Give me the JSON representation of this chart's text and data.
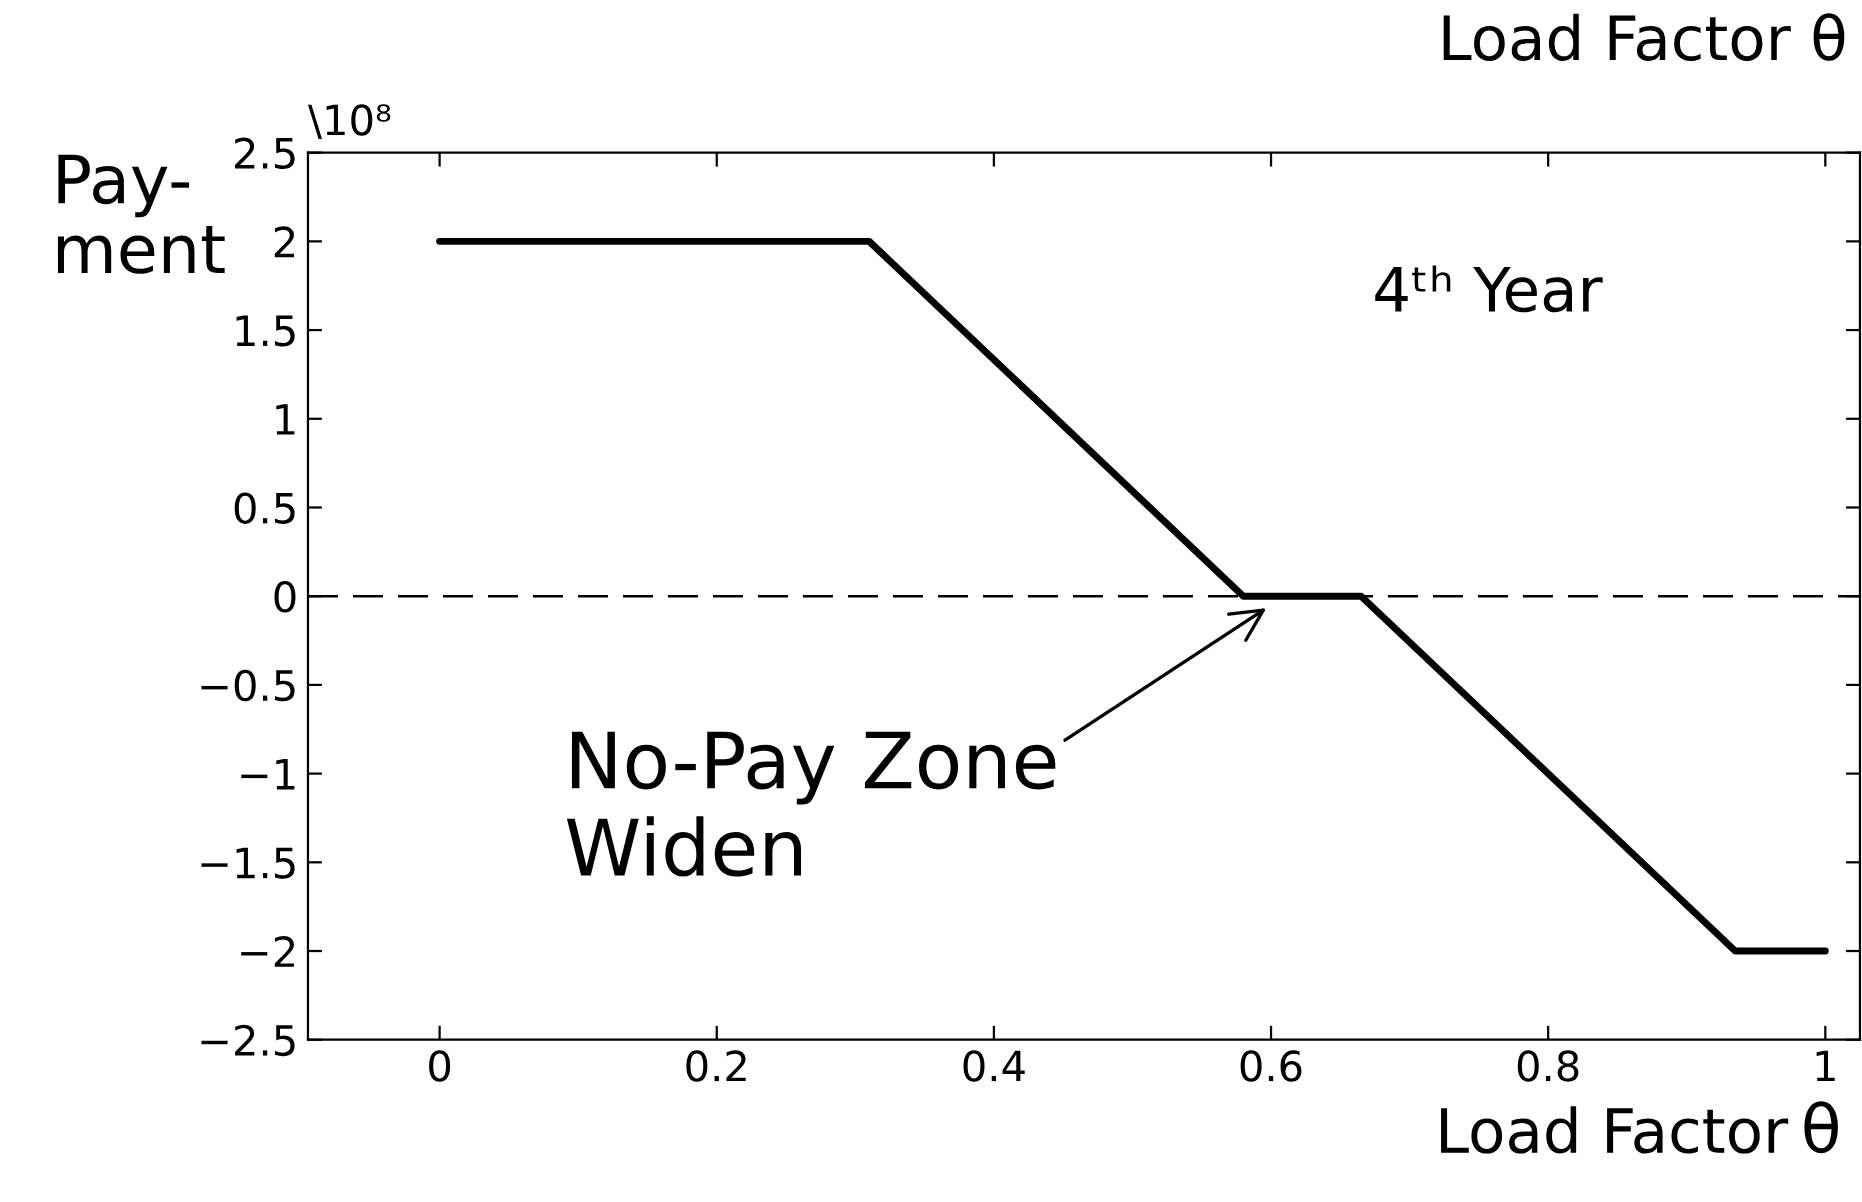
{
  "chart_data": {
    "type": "line",
    "ylabel": "Pay-\nment",
    "xlabel": "Load Factor",
    "annotations": [
      "\\10⁸",
      "Load Factor θ",
      "4ᵗʰ Year",
      "θ",
      {
        "text": "No-Pay Zone\nWiden",
        "x": 0.6,
        "y": -0.05
      }
    ],
    "x": [
      0,
      0.31,
      0.58,
      0.665,
      0.935,
      1.0
    ],
    "series": [
      {
        "color": "#000000",
        "values": [
          2,
          2,
          0,
          0,
          -2,
          -2
        ]
      }
    ],
    "xlim": [
      -0.095,
      1.025
    ],
    "ylim": [
      -2.5,
      2.5
    ],
    "xticks": [
      0,
      0.2,
      0.4,
      0.6,
      0.8,
      1
    ],
    "yticks": [
      -2.5,
      -2,
      -1.5,
      -1,
      -0.5,
      0,
      0.5,
      1,
      1.5,
      2,
      2.5
    ],
    "ref_lines": [
      {
        "axis": "y",
        "value": 0,
        "color": "#000000",
        "line_style": "dashed"
      }
    ],
    "grid": false,
    "legend": false,
    "marker": "none",
    "line_style": "solid"
  }
}
